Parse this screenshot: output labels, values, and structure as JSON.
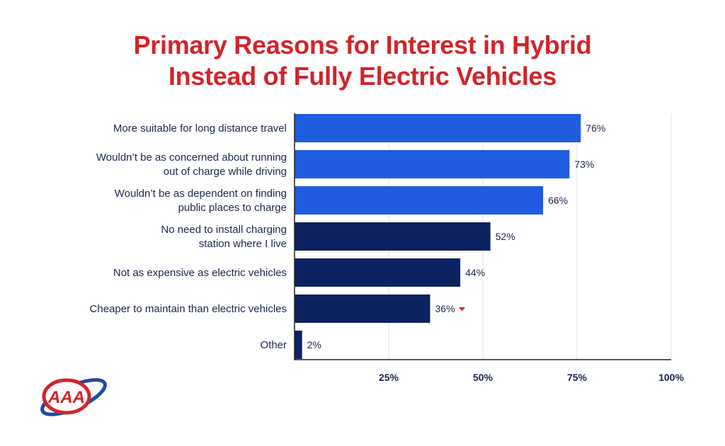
{
  "title_lines": [
    "Primary Reasons for Interest in Hybrid",
    "Instead of Fully Electric Vehicles"
  ],
  "chart_data": {
    "type": "bar",
    "orientation": "horizontal",
    "title": "Primary Reasons for Interest in Hybrid Instead of Fully Electric Vehicles",
    "categories": [
      [
        "More suitable for long distance travel"
      ],
      [
        "Wouldn’t be as concerned about running",
        "out of charge while driving"
      ],
      [
        "Wouldn’t be as dependent on finding",
        "public places to charge"
      ],
      [
        "No need to install charging",
        "station where I live"
      ],
      [
        "Not as expensive as electric vehicles"
      ],
      [
        "Cheaper to maintain than electric vehicles"
      ],
      [
        "Other"
      ]
    ],
    "values": [
      76,
      73,
      66,
      52,
      44,
      36,
      2
    ],
    "value_labels": [
      "76%",
      "73%",
      "66%",
      "52%",
      "44%",
      "36%",
      "2%"
    ],
    "bar_colors": [
      "#1f5ce0",
      "#1f5ce0",
      "#1f5ce0",
      "#0d2260",
      "#0d2260",
      "#0d2260",
      "#0d2260"
    ],
    "down_marker_index": 5,
    "xlim": [
      0,
      100
    ],
    "xticks": [
      25,
      50,
      75,
      100
    ],
    "xtick_labels": [
      "25%",
      "50%",
      "75%",
      "100%"
    ],
    "grid": true,
    "xlabel": "",
    "ylabel": ""
  },
  "logo_text": "AAA",
  "colors": {
    "title": "#d1242a",
    "text": "#1a2550",
    "light_bar": "#1f5ce0",
    "dark_bar": "#0d2260",
    "grid": "#e2e2e2",
    "marker": "#d1242a",
    "logo_red": "#d1242a",
    "logo_blue": "#1a4fa3"
  }
}
